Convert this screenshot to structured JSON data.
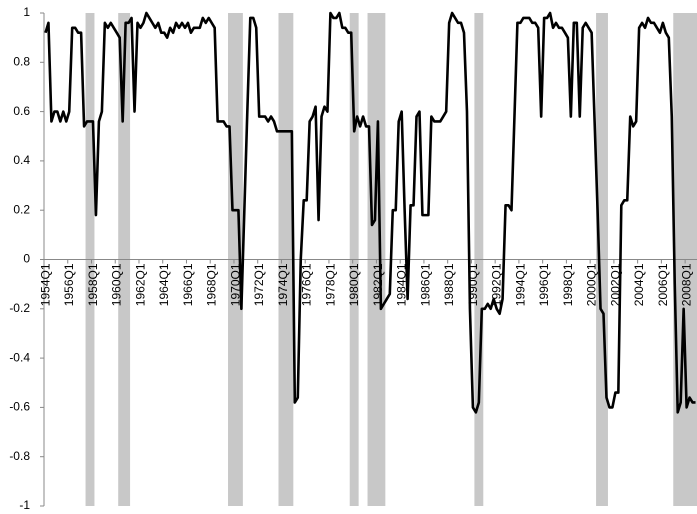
{
  "chart_data": {
    "type": "line",
    "color": "#000000",
    "shade_color": "#c8c8c8",
    "ylim": [
      -1,
      1
    ],
    "yticks": [
      -1,
      -0.8,
      -0.6,
      -0.4,
      -0.2,
      0,
      0.2,
      0.4,
      0.6,
      0.8,
      1
    ],
    "grid": false,
    "shaded_periods": [
      {
        "start": "1957Q3",
        "end": "1958Q1"
      },
      {
        "start": "1960Q2",
        "end": "1961Q1"
      },
      {
        "start": "1969Q3",
        "end": "1970Q3"
      },
      {
        "start": "1973Q4",
        "end": "1974Q4"
      },
      {
        "start": "1979Q4",
        "end": "1980Q2"
      },
      {
        "start": "1981Q2",
        "end": "1982Q3"
      },
      {
        "start": "1990Q2",
        "end": "1990Q4"
      },
      {
        "start": "2000Q3",
        "end": "2001Q2"
      },
      {
        "start": "2007Q1",
        "end": "2008Q4"
      }
    ],
    "categories": [
      "1954Q1",
      null,
      null,
      null,
      null,
      null,
      null,
      null,
      "1956Q1",
      null,
      null,
      null,
      null,
      null,
      null,
      null,
      "1958Q1",
      null,
      null,
      null,
      null,
      null,
      null,
      null,
      "1960Q1",
      null,
      null,
      null,
      null,
      null,
      null,
      null,
      "1962Q1",
      null,
      null,
      null,
      null,
      null,
      null,
      null,
      "1964Q1",
      null,
      null,
      null,
      null,
      null,
      null,
      null,
      "1966Q1",
      null,
      null,
      null,
      null,
      null,
      null,
      null,
      "1968Q1",
      null,
      null,
      null,
      null,
      null,
      null,
      null,
      "1970Q1",
      null,
      null,
      null,
      null,
      null,
      null,
      null,
      "1972Q1",
      null,
      null,
      null,
      null,
      null,
      null,
      null,
      "1974Q1",
      null,
      null,
      null,
      null,
      null,
      null,
      null,
      "1976Q1",
      null,
      null,
      null,
      null,
      null,
      null,
      null,
      "1978Q1",
      null,
      null,
      null,
      null,
      null,
      null,
      null,
      "1980Q1",
      null,
      null,
      null,
      null,
      null,
      null,
      null,
      "1982Q1",
      null,
      null,
      null,
      null,
      null,
      null,
      null,
      "1984Q1",
      null,
      null,
      null,
      null,
      null,
      null,
      null,
      "1986Q1",
      null,
      null,
      null,
      null,
      null,
      null,
      null,
      "1988Q1",
      null,
      null,
      null,
      null,
      null,
      null,
      null,
      "1990Q1",
      null,
      null,
      null,
      null,
      null,
      null,
      null,
      "1992Q1",
      null,
      null,
      null,
      null,
      null,
      null,
      null,
      "1994Q1",
      null,
      null,
      null,
      null,
      null,
      null,
      null,
      "1996Q1",
      null,
      null,
      null,
      null,
      null,
      null,
      null,
      "1998Q1",
      null,
      null,
      null,
      null,
      null,
      null,
      null,
      "2000Q1",
      null,
      null,
      null,
      null,
      null,
      null,
      null,
      "2002Q1",
      null,
      null,
      null,
      null,
      null,
      null,
      null,
      "2004Q1",
      null,
      null,
      null,
      null,
      null,
      null,
      null,
      "2006Q1",
      null,
      null,
      null,
      null,
      null,
      null,
      null,
      "2008Q1",
      null,
      null,
      null
    ],
    "values": [
      0.92,
      0.96,
      0.56,
      0.6,
      0.6,
      0.56,
      0.6,
      0.56,
      0.6,
      0.94,
      0.94,
      0.92,
      0.92,
      0.54,
      0.56,
      0.56,
      0.56,
      0.18,
      0.56,
      0.6,
      0.96,
      0.94,
      0.96,
      0.94,
      0.92,
      0.9,
      0.56,
      0.96,
      0.96,
      0.98,
      0.6,
      0.96,
      0.94,
      0.96,
      1,
      0.98,
      0.96,
      0.94,
      0.96,
      0.92,
      0.92,
      0.9,
      0.94,
      0.92,
      0.96,
      0.94,
      0.96,
      0.94,
      0.96,
      0.92,
      0.94,
      0.94,
      0.94,
      0.98,
      0.96,
      0.98,
      0.96,
      0.94,
      0.56,
      0.56,
      0.56,
      0.54,
      0.54,
      0.2,
      0.2,
      0.2,
      -0.2,
      0.2,
      0.6,
      0.98,
      0.98,
      0.94,
      0.58,
      0.58,
      0.58,
      0.56,
      0.58,
      0.56,
      0.52,
      0.52,
      0.52,
      0.52,
      0.52,
      0.52,
      -0.58,
      -0.56,
      0,
      0.24,
      0.24,
      0.56,
      0.58,
      0.62,
      0.16,
      0.58,
      0.62,
      0.6,
      1,
      0.98,
      0.98,
      1,
      0.94,
      0.94,
      0.92,
      0.92,
      0.52,
      0.58,
      0.54,
      0.58,
      0.54,
      0.54,
      0.14,
      0.16,
      0.56,
      -0.2,
      -0.18,
      -0.16,
      -0.14,
      0.2,
      0.2,
      0.56,
      0.6,
      0.2,
      -0.16,
      0.22,
      0.22,
      0.58,
      0.6,
      0.18,
      0.18,
      0.18,
      0.58,
      0.56,
      0.56,
      0.56,
      0.58,
      0.6,
      0.96,
      1,
      0.98,
      0.96,
      0.96,
      0.92,
      0.6,
      -0.2,
      -0.6,
      -0.62,
      -0.58,
      -0.2,
      -0.2,
      -0.18,
      -0.2,
      -0.16,
      -0.2,
      -0.22,
      -0.16,
      0.22,
      0.22,
      0.2,
      0.58,
      0.96,
      0.96,
      0.98,
      0.98,
      0.98,
      0.96,
      0.96,
      0.94,
      0.58,
      0.98,
      0.98,
      1,
      0.94,
      0.96,
      0.94,
      0.94,
      0.92,
      0.9,
      0.58,
      0.96,
      0.96,
      0.58,
      0.94,
      0.96,
      0.94,
      0.92,
      0.56,
      0.2,
      -0.2,
      -0.22,
      -0.56,
      -0.6,
      -0.6,
      -0.54,
      -0.54,
      0.22,
      0.24,
      0.24,
      0.58,
      0.54,
      0.56,
      0.94,
      0.96,
      0.94,
      0.98,
      0.96,
      0.96,
      0.94,
      0.92,
      0.96,
      0.92,
      0.9,
      0.58,
      -0.1,
      -0.62,
      -0.58,
      -0.2,
      -0.6,
      -0.56,
      -0.58,
      -0.58
    ]
  }
}
